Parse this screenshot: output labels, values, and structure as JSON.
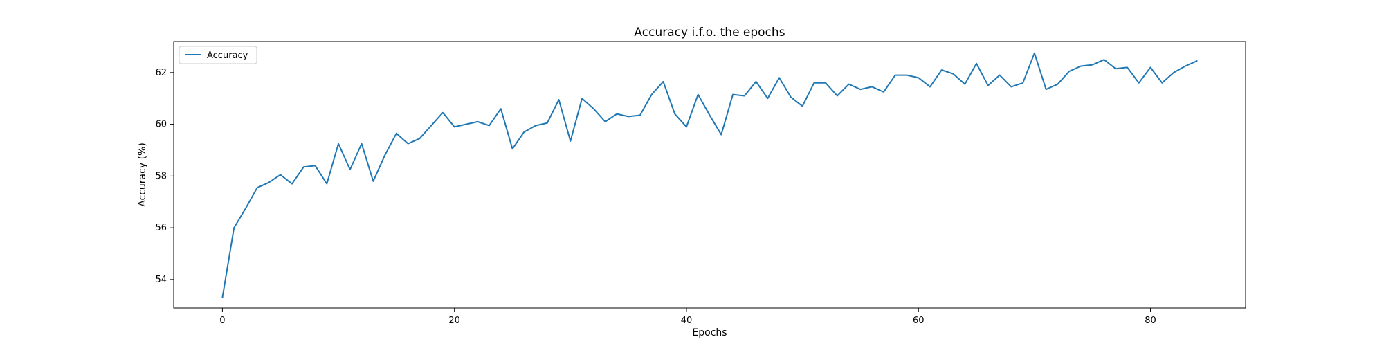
{
  "chart_data": {
    "type": "line",
    "title": "Accuracy i.f.o. the epochs",
    "xlabel": "Epochs",
    "ylabel": "Accuracy (%)",
    "xlim": [
      -4.2,
      88.2
    ],
    "ylim": [
      52.9,
      63.2
    ],
    "xticks": [
      0,
      20,
      40,
      60,
      80
    ],
    "yticks": [
      54,
      56,
      58,
      60,
      62
    ],
    "grid": false,
    "legend_position": "upper-left",
    "series_color": "#1f77b4",
    "series": [
      {
        "name": "Accuracy",
        "x": [
          0,
          1,
          2,
          3,
          4,
          5,
          6,
          7,
          8,
          9,
          10,
          11,
          12,
          13,
          14,
          15,
          16,
          17,
          18,
          19,
          20,
          21,
          22,
          23,
          24,
          25,
          26,
          27,
          28,
          29,
          30,
          31,
          32,
          33,
          34,
          35,
          36,
          37,
          38,
          39,
          40,
          41,
          42,
          43,
          44,
          45,
          46,
          47,
          48,
          49,
          50,
          51,
          52,
          53,
          54,
          55,
          56,
          57,
          58,
          59,
          60,
          61,
          62,
          63,
          64,
          65,
          66,
          67,
          68,
          69,
          70,
          71,
          72,
          73,
          74,
          75,
          76,
          77,
          78,
          79,
          80,
          81,
          82,
          83,
          84
        ],
        "values": [
          53.3,
          56.0,
          56.75,
          57.55,
          57.75,
          58.05,
          57.7,
          58.35,
          58.4,
          57.7,
          59.25,
          58.25,
          59.25,
          57.8,
          58.8,
          59.65,
          59.25,
          59.45,
          59.95,
          60.45,
          59.9,
          60.0,
          60.1,
          59.95,
          60.6,
          59.05,
          59.7,
          59.95,
          60.05,
          60.95,
          59.35,
          61.0,
          60.6,
          60.1,
          60.4,
          60.3,
          60.35,
          61.15,
          61.65,
          60.4,
          59.9,
          61.15,
          60.35,
          59.6,
          61.15,
          61.1,
          61.65,
          61.0,
          61.8,
          61.05,
          60.7,
          61.6,
          61.6,
          61.1,
          61.55,
          61.35,
          61.45,
          61.25,
          61.9,
          61.9,
          61.8,
          61.45,
          62.1,
          61.95,
          61.55,
          62.35,
          61.5,
          61.9,
          61.45,
          61.6,
          62.75,
          61.35,
          61.55,
          62.05,
          62.25,
          62.3,
          62.5,
          62.15,
          62.2,
          61.6,
          62.2,
          61.6,
          62.0,
          62.25,
          62.45
        ]
      }
    ]
  }
}
